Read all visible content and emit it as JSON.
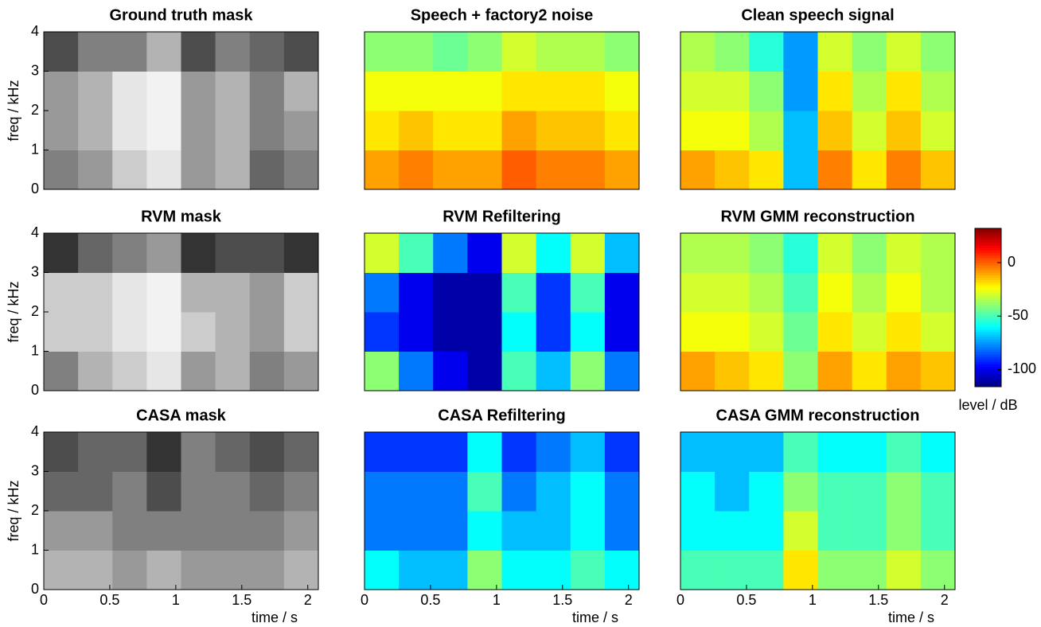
{
  "chart_data": [
    {
      "type": "heatmap",
      "title": "Ground truth mask",
      "colormap": "gray",
      "ylabel": "freq / kHz",
      "x": [
        0,
        0.26,
        0.52,
        0.78,
        1.04,
        1.3,
        1.56,
        1.82,
        2.08
      ],
      "y": [
        0,
        1,
        2,
        3,
        4
      ],
      "xlim": [
        0,
        2.08
      ],
      "ylim": [
        0,
        4
      ],
      "yticks": [
        0,
        1,
        2,
        3,
        4
      ],
      "values": [
        [
          0.5,
          0.6,
          0.8,
          0.9,
          0.6,
          0.7,
          0.4,
          0.5
        ],
        [
          0.6,
          0.7,
          0.9,
          0.95,
          0.6,
          0.7,
          0.5,
          0.6
        ],
        [
          0.6,
          0.7,
          0.9,
          0.95,
          0.6,
          0.7,
          0.5,
          0.7
        ],
        [
          0.3,
          0.5,
          0.5,
          0.7,
          0.3,
          0.5,
          0.4,
          0.3
        ]
      ]
    },
    {
      "type": "heatmap",
      "title": "Speech + factory2 noise",
      "colormap": "jet",
      "x": [
        0,
        0.26,
        0.52,
        0.78,
        1.04,
        1.3,
        1.56,
        1.82,
        2.08
      ],
      "y": [
        0,
        1,
        2,
        3,
        4
      ],
      "xlim": [
        0,
        2.08
      ],
      "ylim": [
        0,
        4
      ],
      "values": [
        [
          -10,
          -5,
          -10,
          -10,
          0,
          -5,
          -5,
          -10
        ],
        [
          -20,
          -15,
          -20,
          -20,
          -10,
          -15,
          -15,
          -20
        ],
        [
          -25,
          -25,
          -25,
          -25,
          -20,
          -20,
          -20,
          -25
        ],
        [
          -40,
          -40,
          -45,
          -40,
          -30,
          -35,
          -35,
          -40
        ]
      ]
    },
    {
      "type": "heatmap",
      "title": "Clean speech signal",
      "colormap": "jet",
      "x": [
        0,
        0.26,
        0.52,
        0.78,
        1.04,
        1.3,
        1.56,
        1.82,
        2.08
      ],
      "y": [
        0,
        1,
        2,
        3,
        4
      ],
      "xlim": [
        0,
        2.08
      ],
      "ylim": [
        0,
        4
      ],
      "values": [
        [
          -10,
          -15,
          -20,
          -70,
          -5,
          -20,
          -5,
          -15
        ],
        [
          -25,
          -25,
          -35,
          -70,
          -15,
          -30,
          -15,
          -30
        ],
        [
          -30,
          -30,
          -40,
          -75,
          -20,
          -35,
          -20,
          -35
        ],
        [
          -35,
          -40,
          -55,
          -75,
          -30,
          -40,
          -30,
          -40
        ]
      ]
    },
    {
      "type": "heatmap",
      "title": "RVM mask",
      "colormap": "gray",
      "ylabel": "freq / kHz",
      "x": [
        0,
        0.26,
        0.52,
        0.78,
        1.04,
        1.3,
        1.56,
        1.82,
        2.08
      ],
      "y": [
        0,
        1,
        2,
        3,
        4
      ],
      "xlim": [
        0,
        2.08
      ],
      "ylim": [
        0,
        4
      ],
      "yticks": [
        0,
        1,
        2,
        3,
        4
      ],
      "values": [
        [
          0.5,
          0.7,
          0.8,
          0.9,
          0.6,
          0.7,
          0.5,
          0.6
        ],
        [
          0.8,
          0.8,
          0.9,
          0.95,
          0.8,
          0.7,
          0.6,
          0.8
        ],
        [
          0.8,
          0.8,
          0.9,
          0.95,
          0.7,
          0.7,
          0.6,
          0.8
        ],
        [
          0.2,
          0.4,
          0.5,
          0.6,
          0.2,
          0.3,
          0.3,
          0.2
        ]
      ]
    },
    {
      "type": "heatmap",
      "title": "RVM Refiltering",
      "colormap": "jet",
      "x": [
        0,
        0.26,
        0.52,
        0.78,
        1.04,
        1.3,
        1.56,
        1.82,
        2.08
      ],
      "y": [
        0,
        1,
        2,
        3,
        4
      ],
      "xlim": [
        0,
        2.08
      ],
      "ylim": [
        0,
        4
      ],
      "values": [
        [
          -40,
          -80,
          -100,
          -110,
          -50,
          -70,
          -40,
          -80
        ],
        [
          -90,
          -100,
          -110,
          -110,
          -60,
          -90,
          -60,
          -100
        ],
        [
          -80,
          -100,
          -110,
          -110,
          -50,
          -90,
          -50,
          -100
        ],
        [
          -30,
          -50,
          -80,
          -100,
          -30,
          -60,
          -30,
          -70
        ]
      ]
    },
    {
      "type": "heatmap",
      "title": "RVM GMM reconstruction",
      "colormap": "jet",
      "x": [
        0,
        0.26,
        0.52,
        0.78,
        1.04,
        1.3,
        1.56,
        1.82,
        2.08
      ],
      "y": [
        0,
        1,
        2,
        3,
        4
      ],
      "xlim": [
        0,
        2.08
      ],
      "ylim": [
        0,
        4
      ],
      "values": [
        [
          -10,
          -15,
          -20,
          -40,
          -10,
          -20,
          -10,
          -15
        ],
        [
          -25,
          -25,
          -30,
          -45,
          -20,
          -30,
          -20,
          -30
        ],
        [
          -30,
          -30,
          -35,
          -50,
          -25,
          -35,
          -25,
          -35
        ],
        [
          -35,
          -35,
          -40,
          -55,
          -30,
          -40,
          -30,
          -35
        ]
      ]
    },
    {
      "type": "heatmap",
      "title": "CASA mask",
      "colormap": "gray",
      "ylabel": "freq / kHz",
      "xlabel": "time / s",
      "x": [
        0,
        0.26,
        0.52,
        0.78,
        1.04,
        1.3,
        1.56,
        1.82,
        2.08
      ],
      "y": [
        0,
        1,
        2,
        3,
        4
      ],
      "xlim": [
        0,
        2.08
      ],
      "ylim": [
        0,
        4
      ],
      "yticks": [
        0,
        1,
        2,
        3,
        4
      ],
      "xticks": [
        0,
        0.5,
        1,
        1.5,
        2
      ],
      "values": [
        [
          0.7,
          0.7,
          0.6,
          0.7,
          0.6,
          0.6,
          0.6,
          0.7
        ],
        [
          0.6,
          0.6,
          0.5,
          0.5,
          0.5,
          0.5,
          0.5,
          0.6
        ],
        [
          0.4,
          0.4,
          0.5,
          0.3,
          0.5,
          0.5,
          0.4,
          0.5
        ],
        [
          0.3,
          0.4,
          0.4,
          0.2,
          0.5,
          0.4,
          0.3,
          0.4
        ]
      ]
    },
    {
      "type": "heatmap",
      "title": "CASA Refiltering",
      "colormap": "jet",
      "xlabel": "time / s",
      "x": [
        0,
        0.26,
        0.52,
        0.78,
        1.04,
        1.3,
        1.56,
        1.82,
        2.08
      ],
      "y": [
        0,
        1,
        2,
        3,
        4
      ],
      "xlim": [
        0,
        2.08
      ],
      "ylim": [
        0,
        4
      ],
      "xticks": [
        0,
        0.5,
        1,
        1.5,
        2
      ],
      "values": [
        [
          -60,
          -70,
          -70,
          -40,
          -60,
          -60,
          -50,
          -60
        ],
        [
          -80,
          -80,
          -80,
          -60,
          -70,
          -70,
          -60,
          -80
        ],
        [
          -80,
          -80,
          -80,
          -50,
          -80,
          -70,
          -60,
          -80
        ],
        [
          -90,
          -90,
          -90,
          -60,
          -90,
          -80,
          -70,
          -90
        ]
      ]
    },
    {
      "type": "heatmap",
      "title": "CASA GMM reconstruction",
      "colormap": "jet",
      "xlabel": "time / s",
      "x": [
        0,
        0.26,
        0.52,
        0.78,
        1.04,
        1.3,
        1.56,
        1.82,
        2.08
      ],
      "y": [
        0,
        1,
        2,
        3,
        4
      ],
      "xlim": [
        0,
        2.08
      ],
      "ylim": [
        0,
        4
      ],
      "xticks": [
        0,
        0.5,
        1,
        1.5,
        2
      ],
      "values": [
        [
          -50,
          -50,
          -50,
          -20,
          -40,
          -40,
          -30,
          -40
        ],
        [
          -60,
          -60,
          -60,
          -30,
          -50,
          -50,
          -40,
          -50
        ],
        [
          -60,
          -70,
          -60,
          -40,
          -50,
          -50,
          -40,
          -50
        ],
        [
          -70,
          -70,
          -70,
          -50,
          -60,
          -60,
          -50,
          -60
        ]
      ]
    },
    {
      "type": "colorbar",
      "colormap": "jet",
      "label": "level / dB",
      "ylim": [
        -116,
        32
      ],
      "yticks": [
        0,
        -50,
        -100
      ]
    }
  ]
}
